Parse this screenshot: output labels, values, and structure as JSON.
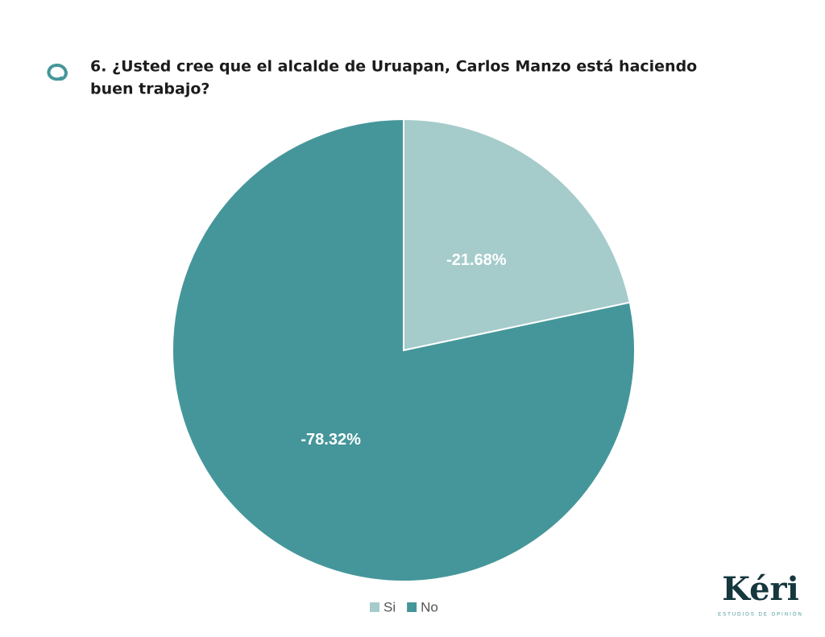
{
  "chart_data": {
    "type": "pie",
    "title": "6. ¿Usted cree que el alcalde de Uruapan, Carlos Manzo está haciendo buen trabajo?",
    "categories": [
      "Si",
      "No"
    ],
    "values": [
      -21.68,
      -78.32
    ],
    "value_labels": [
      "-21.68%",
      "-78.32%"
    ],
    "colors": [
      "#a5cbcb",
      "#45969a"
    ],
    "legend": "bottom"
  },
  "logo": {
    "name": "Kéri",
    "tagline": "ESTUDIOS DE OPINIÓN"
  }
}
